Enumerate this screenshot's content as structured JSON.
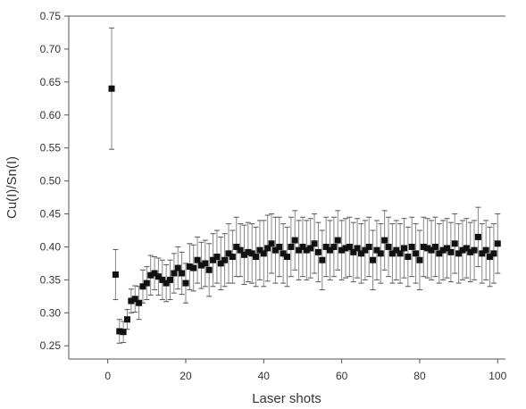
{
  "chart_data": {
    "type": "scatter",
    "title": "",
    "xlabel": "Laser shots",
    "ylabel": "Cu(I)/Sn(I)",
    "xlim": [
      -10,
      102
    ],
    "ylim": [
      0.23,
      0.75
    ],
    "x_ticks": [
      0,
      20,
      40,
      60,
      80,
      100
    ],
    "x_tick_labels": [
      "0",
      "20",
      "40",
      "60",
      "80",
      "100"
    ],
    "y_ticks": [
      0.25,
      0.3,
      0.35,
      0.4,
      0.45,
      0.5,
      0.55,
      0.6,
      0.65,
      0.7,
      0.75
    ],
    "y_tick_labels": [
      "0.25",
      "0.30",
      "0.35",
      "0.40",
      "0.45",
      "0.50",
      "0.55",
      "0.60",
      "0.65",
      "0.70",
      "0.75"
    ],
    "grid": false,
    "legend": "none",
    "marker": "square",
    "color": "#111111",
    "series": [
      {
        "x": [
          1,
          2,
          3,
          4,
          5,
          6,
          7,
          8,
          9,
          10,
          11,
          12,
          13,
          14,
          15,
          16,
          17,
          18,
          19,
          20,
          21,
          22,
          23,
          24,
          25,
          26,
          27,
          28,
          29,
          30,
          31,
          32,
          33,
          34,
          35,
          36,
          37,
          38,
          39,
          40,
          41,
          42,
          43,
          44,
          45,
          46,
          47,
          48,
          49,
          50,
          51,
          52,
          53,
          54,
          55,
          56,
          57,
          58,
          59,
          60,
          61,
          62,
          63,
          64,
          65,
          66,
          67,
          68,
          69,
          70,
          71,
          72,
          73,
          74,
          75,
          76,
          77,
          78,
          79,
          80,
          81,
          82,
          83,
          84,
          85,
          86,
          87,
          88,
          89,
          90,
          91,
          92,
          93,
          94,
          95,
          96,
          97,
          98,
          99,
          100
        ],
        "y": [
          0.64,
          0.358,
          0.272,
          0.271,
          0.29,
          0.318,
          0.321,
          0.315,
          0.34,
          0.345,
          0.357,
          0.36,
          0.355,
          0.35,
          0.345,
          0.35,
          0.36,
          0.368,
          0.36,
          0.345,
          0.37,
          0.368,
          0.38,
          0.372,
          0.375,
          0.365,
          0.38,
          0.385,
          0.375,
          0.38,
          0.39,
          0.385,
          0.4,
          0.395,
          0.388,
          0.392,
          0.39,
          0.385,
          0.395,
          0.39,
          0.398,
          0.405,
          0.395,
          0.4,
          0.39,
          0.385,
          0.4,
          0.41,
          0.395,
          0.4,
          0.395,
          0.398,
          0.405,
          0.392,
          0.38,
          0.4,
          0.395,
          0.4,
          0.41,
          0.395,
          0.398,
          0.4,
          0.392,
          0.398,
          0.39,
          0.395,
          0.4,
          0.38,
          0.395,
          0.39,
          0.41,
          0.4,
          0.39,
          0.395,
          0.39,
          0.398,
          0.385,
          0.4,
          0.39,
          0.38,
          0.4,
          0.398,
          0.395,
          0.4,
          0.39,
          0.395,
          0.398,
          0.392,
          0.405,
          0.39,
          0.395,
          0.398,
          0.392,
          0.395,
          0.415,
          0.39,
          0.395,
          0.385,
          0.39,
          0.405
        ],
        "errors": [
          0.092,
          0.038,
          0.018,
          0.016,
          0.015,
          0.018,
          0.02,
          0.025,
          0.025,
          0.025,
          0.03,
          0.025,
          0.028,
          0.03,
          0.028,
          0.03,
          0.03,
          0.032,
          0.032,
          0.03,
          0.035,
          0.035,
          0.035,
          0.035,
          0.035,
          0.04,
          0.04,
          0.04,
          0.04,
          0.04,
          0.045,
          0.04,
          0.045,
          0.04,
          0.045,
          0.045,
          0.045,
          0.045,
          0.045,
          0.05,
          0.05,
          0.045,
          0.05,
          0.045,
          0.045,
          0.045,
          0.045,
          0.045,
          0.045,
          0.045,
          0.045,
          0.045,
          0.045,
          0.045,
          0.045,
          0.045,
          0.045,
          0.045,
          0.045,
          0.045,
          0.045,
          0.045,
          0.045,
          0.045,
          0.045,
          0.045,
          0.045,
          0.045,
          0.045,
          0.045,
          0.045,
          0.045,
          0.045,
          0.045,
          0.045,
          0.045,
          0.045,
          0.045,
          0.045,
          0.045,
          0.045,
          0.045,
          0.045,
          0.045,
          0.045,
          0.045,
          0.045,
          0.045,
          0.045,
          0.045,
          0.045,
          0.045,
          0.045,
          0.045,
          0.045,
          0.045,
          0.045,
          0.045,
          0.045,
          0.045
        ]
      }
    ]
  }
}
